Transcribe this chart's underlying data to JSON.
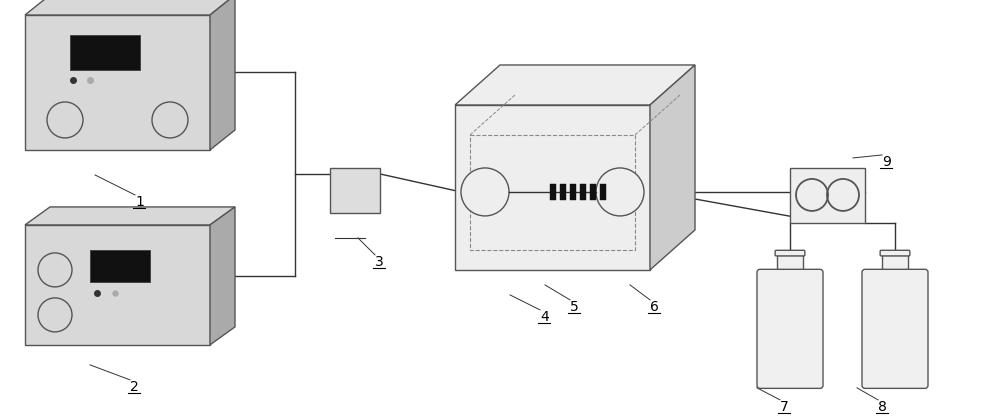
{
  "bg_color": "#ffffff",
  "line_color": "#333333",
  "box_fill": "#d8d8d8",
  "box_edge": "#555555",
  "dark_fill": "#aaaaaa",
  "screen_fill": "#111111",
  "label_color": "#000000",
  "label_fs": 10,
  "lw": 1.0
}
